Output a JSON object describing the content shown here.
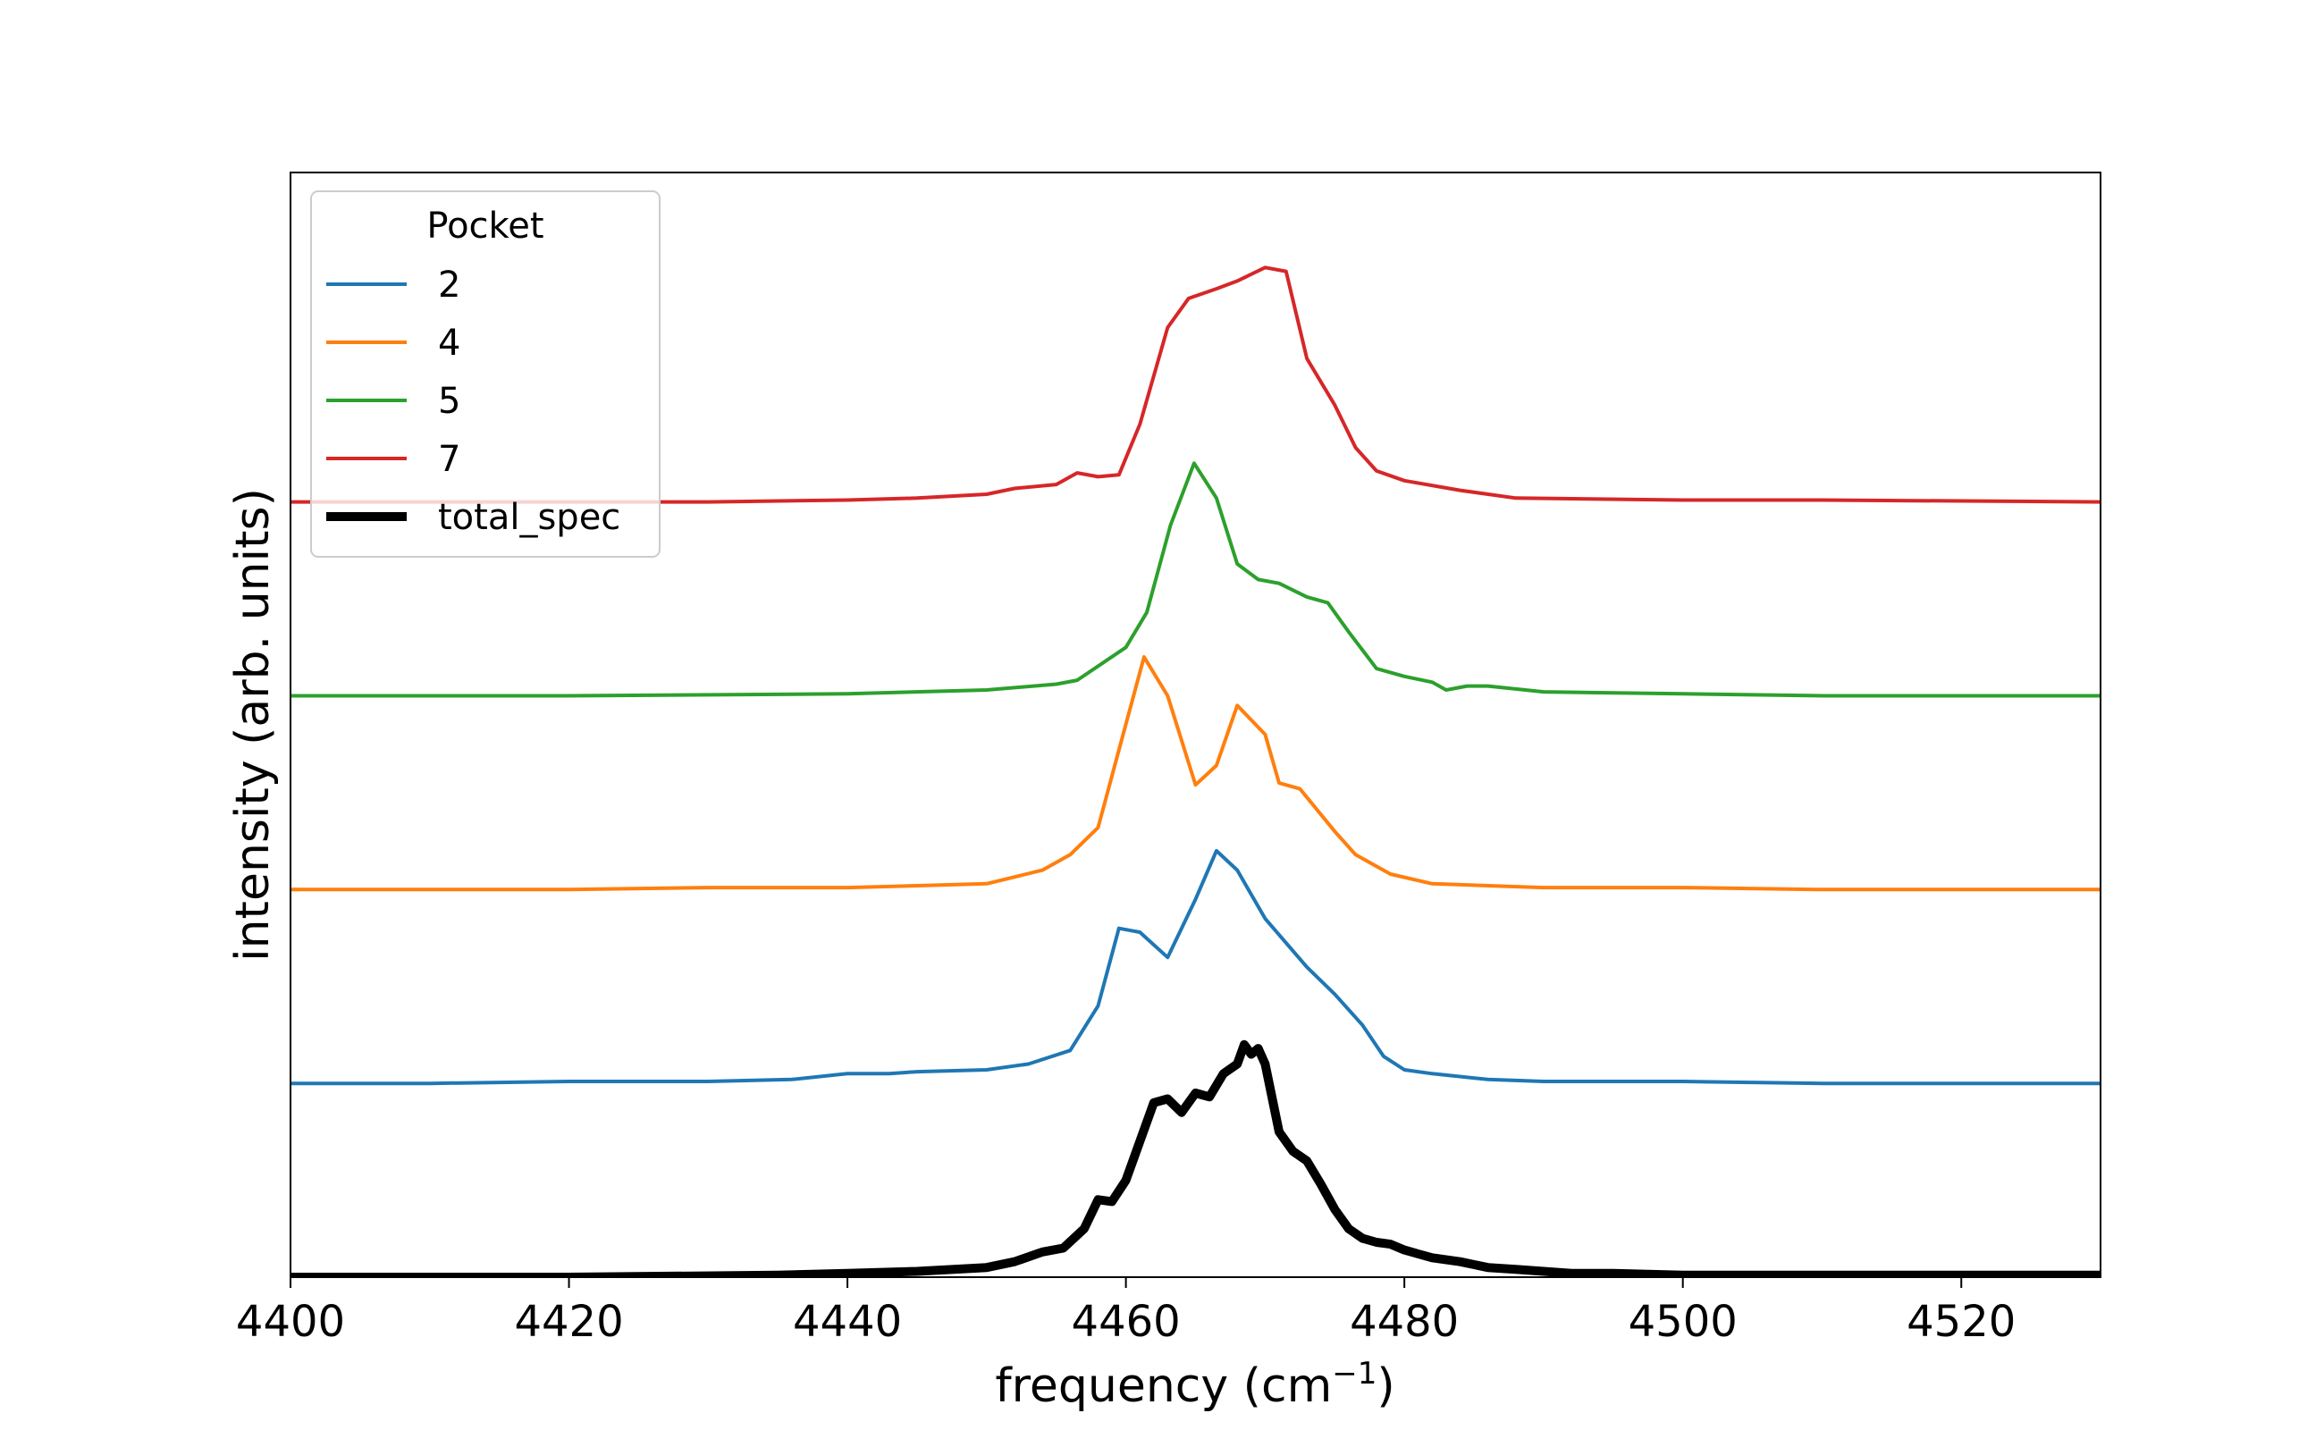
{
  "chart_data": {
    "type": "line",
    "xlabel": "frequency (cm",
    "xlabel_sup": "−1",
    "xlabel_end": ")",
    "ylabel": "intensity (arb. units)",
    "xlim": [
      4400,
      4530
    ],
    "ylim": [
      0,
      5.7
    ],
    "xticks": [
      "4400",
      "4420",
      "4440",
      "4460",
      "4480",
      "4500",
      "4520"
    ],
    "yticks_shown": false,
    "grid": false,
    "legend": {
      "title": "Pocket",
      "placement": "top-left",
      "entries": [
        "2",
        "4",
        "5",
        "7",
        "total_spec"
      ]
    },
    "colors": {
      "pocket_2": "#1f77b4",
      "pocket_4": "#ff7f0e",
      "pocket_5": "#2ca02c",
      "pocket_7": "#d62728",
      "total_spec": "#000000"
    },
    "series": [
      {
        "name": "2",
        "color": "#1f77b4",
        "x": [
          4400,
          4410,
          4420,
          4430,
          4436,
          4440,
          4443,
          4445,
          4450,
          4453,
          4456,
          4458,
          4459.5,
          4461,
          4463,
          4465,
          4466.5,
          4468,
          4470,
          4473,
          4475,
          4477,
          4478.5,
          4480,
          4482,
          4486,
          4490,
          4500,
          4510,
          4530
        ],
        "y": [
          1.0,
          1.0,
          1.01,
          1.01,
          1.02,
          1.05,
          1.05,
          1.06,
          1.07,
          1.1,
          1.17,
          1.4,
          1.8,
          1.78,
          1.65,
          1.95,
          2.2,
          2.1,
          1.85,
          1.6,
          1.46,
          1.3,
          1.14,
          1.07,
          1.05,
          1.02,
          1.01,
          1.01,
          1.0,
          1.0
        ]
      },
      {
        "name": "4",
        "color": "#ff7f0e",
        "x": [
          4400,
          4410,
          4420,
          4430,
          4440,
          4445,
          4450,
          4454,
          4456,
          4458,
          4459.5,
          4461.3,
          4463,
          4465,
          4466.5,
          4468,
          4470,
          4471,
          4472.5,
          4475,
          4476.5,
          4479,
          4482,
          4490,
          4500,
          4510,
          4530
        ],
        "y": [
          2.0,
          2.0,
          2.0,
          2.01,
          2.01,
          2.02,
          2.03,
          2.1,
          2.18,
          2.32,
          2.72,
          3.2,
          3.0,
          2.54,
          2.64,
          2.95,
          2.8,
          2.55,
          2.52,
          2.3,
          2.18,
          2.08,
          2.03,
          2.01,
          2.01,
          2.0,
          2.0
        ]
      },
      {
        "name": "5",
        "color": "#2ca02c",
        "x": [
          4400,
          4420,
          4440,
          4450,
          4455,
          4456.5,
          4460,
          4461.5,
          4463.2,
          4464.9,
          4466.5,
          4468,
          4469.5,
          4471,
          4473,
          4474.5,
          4476,
          4478,
          4480,
          4482,
          4483,
          4484.5,
          4486,
          4490,
          4500,
          4510,
          4530
        ],
        "y": [
          3.0,
          3.0,
          3.01,
          3.03,
          3.06,
          3.08,
          3.25,
          3.43,
          3.88,
          4.2,
          4.02,
          3.68,
          3.6,
          3.58,
          3.51,
          3.48,
          3.33,
          3.14,
          3.1,
          3.07,
          3.03,
          3.05,
          3.05,
          3.02,
          3.01,
          3.0,
          3.0
        ]
      },
      {
        "name": "7",
        "color": "#d62728",
        "x": [
          4400,
          4410,
          4420,
          4430,
          4440,
          4445,
          4450,
          4452,
          4455,
          4456.5,
          4458,
          4459.5,
          4461,
          4463,
          4464.5,
          4466.5,
          4468,
          4470,
          4471.5,
          4473,
          4475,
          4476.5,
          4478,
          4480,
          4484,
          4488,
          4500,
          4510,
          4530
        ],
        "y": [
          4.0,
          4.0,
          4.0,
          4.0,
          4.01,
          4.02,
          4.04,
          4.07,
          4.09,
          4.15,
          4.13,
          4.14,
          4.4,
          4.9,
          5.05,
          5.1,
          5.14,
          5.21,
          5.19,
          4.74,
          4.5,
          4.28,
          4.16,
          4.11,
          4.06,
          4.02,
          4.01,
          4.01,
          4.0
        ]
      },
      {
        "name": "total_spec",
        "color": "#000000",
        "x": [
          4400,
          4420,
          4435,
          4440,
          4445,
          4450,
          4452,
          4454,
          4455.5,
          4457,
          4458,
          4459,
          4460,
          4461,
          4462,
          4463,
          4464,
          4465,
          4466,
          4467,
          4468,
          4468.5,
          4469,
          4469.5,
          4470,
          4471,
          4472,
          4473,
          4474,
          4475,
          4476,
          4477,
          4478,
          4479,
          4480,
          4481,
          4482,
          4484,
          4486,
          4488,
          4490,
          4492,
          4495,
          4500,
          4510,
          4530
        ],
        "y": [
          0.0,
          0.0,
          0.01,
          0.02,
          0.03,
          0.05,
          0.08,
          0.13,
          0.15,
          0.25,
          0.4,
          0.39,
          0.5,
          0.7,
          0.9,
          0.92,
          0.85,
          0.95,
          0.93,
          1.05,
          1.1,
          1.2,
          1.15,
          1.18,
          1.1,
          0.75,
          0.65,
          0.6,
          0.48,
          0.35,
          0.25,
          0.2,
          0.18,
          0.17,
          0.14,
          0.12,
          0.1,
          0.08,
          0.05,
          0.04,
          0.03,
          0.02,
          0.02,
          0.01,
          0.01,
          0.01
        ]
      }
    ]
  }
}
